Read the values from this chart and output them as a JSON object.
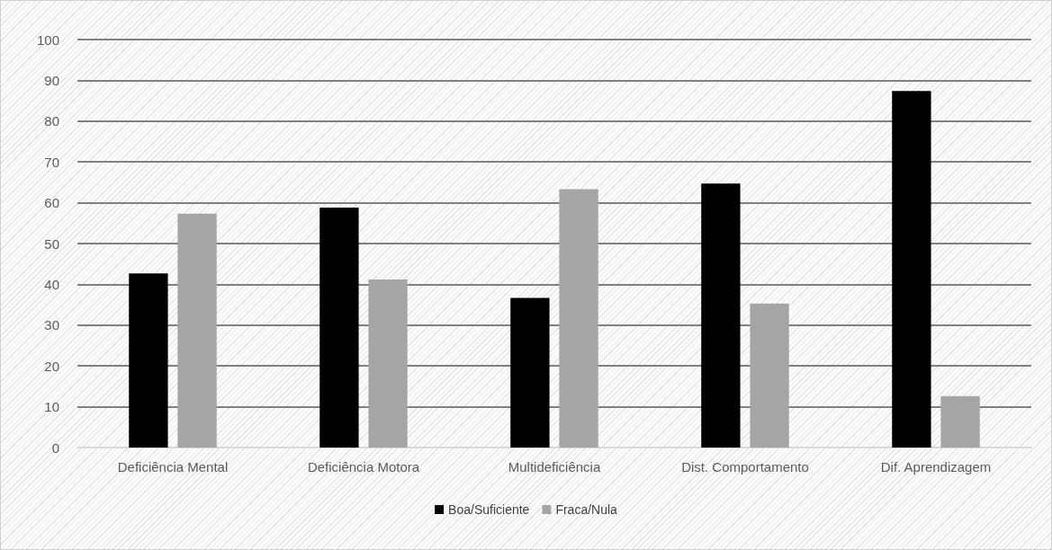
{
  "chart_data": {
    "type": "bar",
    "categories": [
      "Deficiência Mental",
      "Deficiência Motora",
      "Multideficiência",
      "Dist. Comportamento",
      "Dif. Aprendizagem"
    ],
    "series": [
      {
        "name": "Boa/Suficiente",
        "color": "#000000",
        "values": [
          42.7,
          58.8,
          36.7,
          64.7,
          87.4
        ]
      },
      {
        "name": "Fraca/Nula",
        "color": "#a5a5a5",
        "values": [
          57.3,
          41.2,
          63.3,
          35.3,
          12.6
        ]
      }
    ],
    "ylim": [
      0,
      100
    ],
    "yticks": [
      0,
      10,
      20,
      30,
      40,
      50,
      60,
      70,
      80,
      90,
      100
    ],
    "grid": "y",
    "legend": "bottom"
  }
}
